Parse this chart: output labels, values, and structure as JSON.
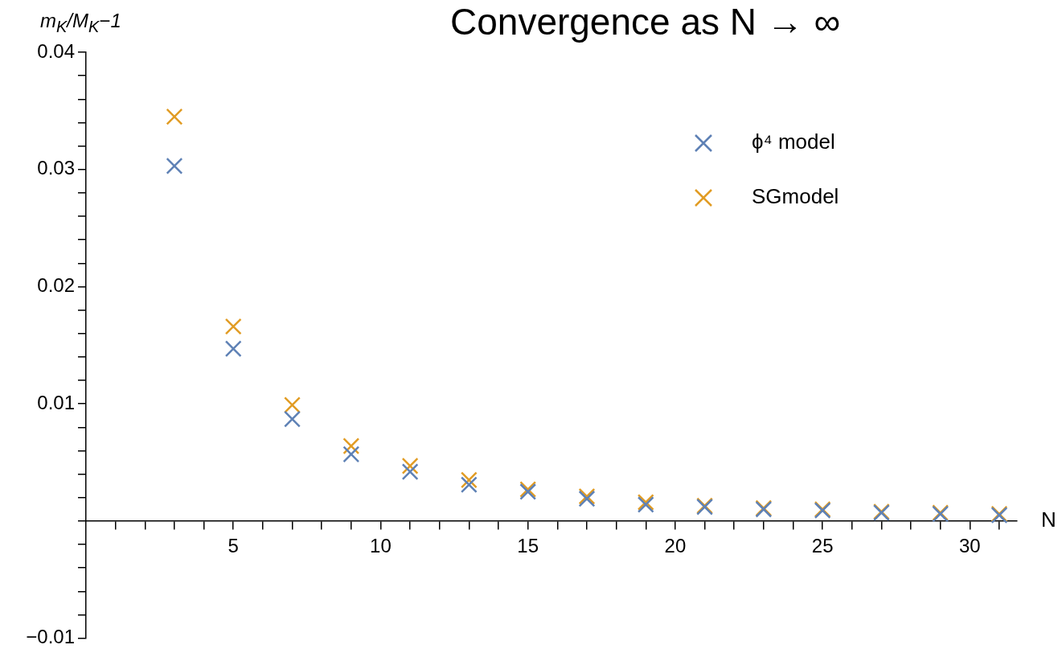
{
  "chart_data": {
    "type": "scatter",
    "title": "Convergence as N → ∞",
    "xlabel": "N",
    "ylabel": "m$_{K}$/M$_{K}$−1",
    "x": [
      3,
      5,
      7,
      9,
      11,
      13,
      15,
      17,
      19,
      21,
      23,
      25,
      27,
      29,
      31
    ],
    "series": [
      {
        "name": "ϕ⁴ model",
        "color": "#5e81b5",
        "values": [
          0.0303,
          0.0147,
          0.0087,
          0.0057,
          0.0042,
          0.0031,
          0.0025,
          0.0019,
          0.0014,
          0.0012,
          0.001,
          0.0009,
          0.0007,
          0.0006,
          0.0005
        ]
      },
      {
        "name": "SGmodel",
        "color": "#e19c24",
        "values": [
          0.0345,
          0.0166,
          0.0099,
          0.0064,
          0.0047,
          0.0035,
          0.0027,
          0.0021,
          0.0016,
          0.0013,
          0.0011,
          0.001,
          0.0008,
          0.0007,
          0.0006
        ]
      }
    ],
    "xlim": [
      0,
      31.6
    ],
    "xticks": [
      {
        "value": 1,
        "label": null
      },
      {
        "value": 2,
        "label": null
      },
      {
        "value": 3,
        "label": null
      },
      {
        "value": 4,
        "label": null
      },
      5,
      {
        "value": 6,
        "label": null
      },
      {
        "value": 7,
        "label": null
      },
      {
        "value": 8,
        "label": null
      },
      {
        "value": 9,
        "label": null
      },
      10,
      {
        "value": 11,
        "label": null
      },
      {
        "value": 12,
        "label": null
      },
      {
        "value": 13,
        "label": null
      },
      {
        "value": 14,
        "label": null
      },
      15,
      {
        "value": 16,
        "label": null
      },
      {
        "value": 17,
        "label": null
      },
      {
        "value": 18,
        "label": null
      },
      {
        "value": 19,
        "label": null
      },
      20,
      {
        "value": 21,
        "label": null
      },
      {
        "value": 22,
        "label": null
      },
      {
        "value": 23,
        "label": null
      },
      {
        "value": 24,
        "label": null
      },
      25,
      {
        "value": 26,
        "label": null
      },
      {
        "value": 27,
        "label": null
      },
      {
        "value": 28,
        "label": null
      },
      {
        "value": 29,
        "label": null
      },
      30,
      {
        "value": 31,
        "label": null
      }
    ],
    "ylim": [
      -0.01,
      0.04
    ],
    "yticks": [
      {
        "value": -0.01,
        "label": "−0.01"
      },
      {
        "value": -0.008,
        "label": null
      },
      {
        "value": -0.006,
        "label": null
      },
      {
        "value": -0.004,
        "label": null
      },
      {
        "value": -0.002,
        "label": null
      },
      {
        "value": 0,
        "label": null
      },
      {
        "value": 0.002,
        "label": null
      },
      {
        "value": 0.004,
        "label": null
      },
      {
        "value": 0.006,
        "label": null
      },
      {
        "value": 0.008,
        "label": null
      },
      0.01,
      {
        "value": 0.012,
        "label": null
      },
      {
        "value": 0.014,
        "label": null
      },
      {
        "value": 0.016,
        "label": null
      },
      {
        "value": 0.018,
        "label": null
      },
      0.02,
      {
        "value": 0.022,
        "label": null
      },
      {
        "value": 0.024,
        "label": null
      },
      {
        "value": 0.026,
        "label": null
      },
      {
        "value": 0.028,
        "label": null
      },
      0.03,
      {
        "value": 0.032,
        "label": null
      },
      {
        "value": 0.034,
        "label": null
      },
      {
        "value": 0.036,
        "label": null
      },
      {
        "value": 0.038,
        "label": null
      },
      0.04
    ],
    "legend": "top right",
    "marker": "cross"
  }
}
